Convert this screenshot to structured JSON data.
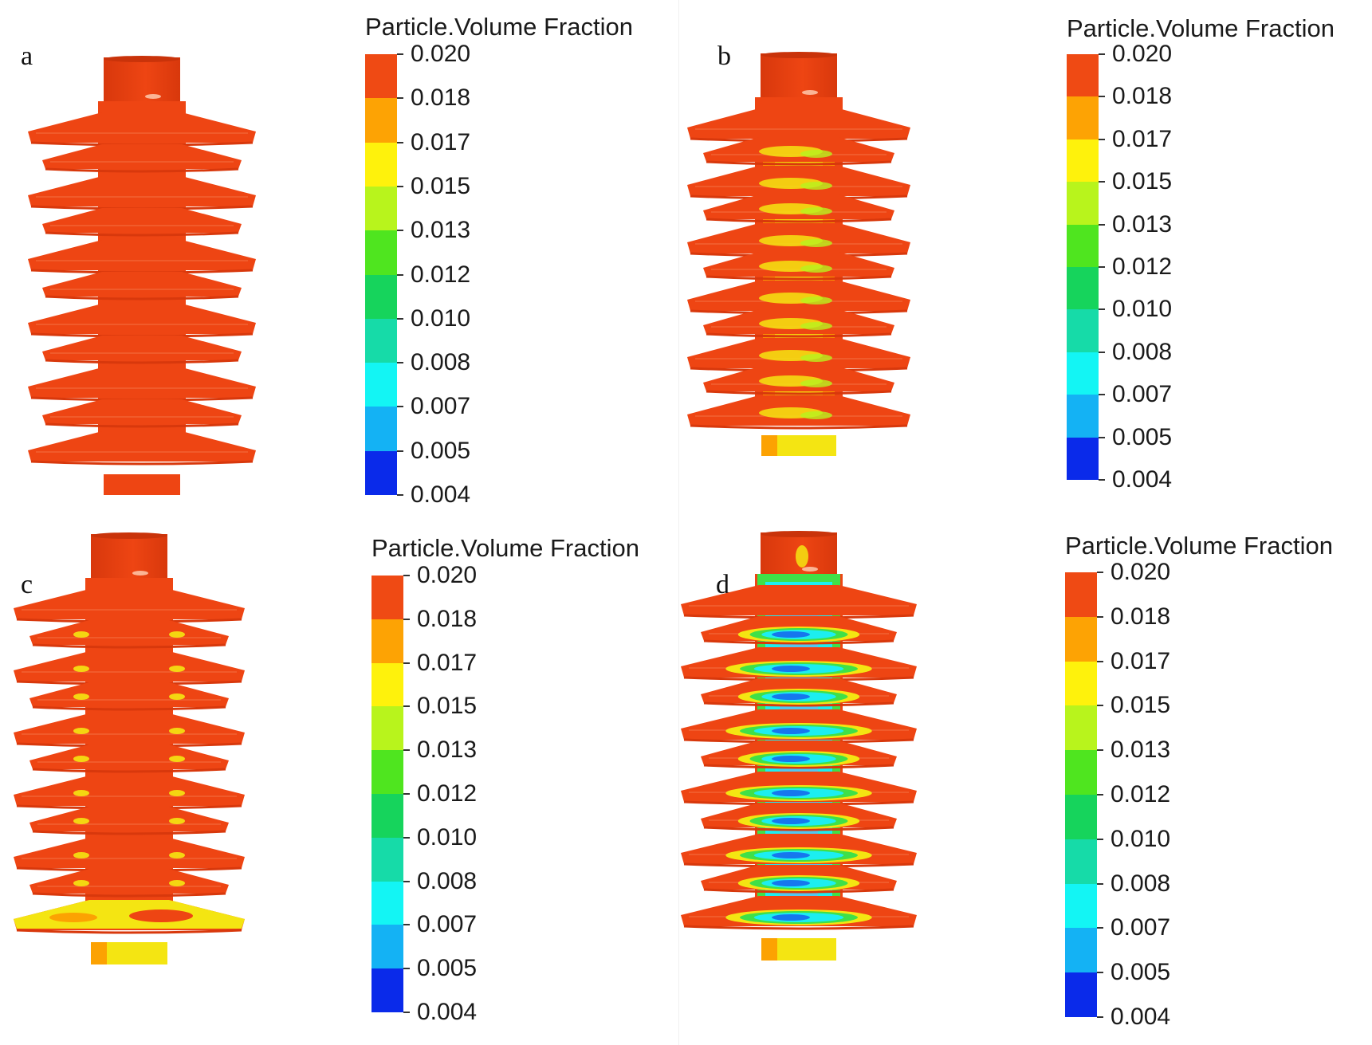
{
  "legend": {
    "title": "Particle.Volume Fraction",
    "labels": [
      "0.020",
      "0.018",
      "0.017",
      "0.015",
      "0.013",
      "0.012",
      "0.010",
      "0.008",
      "0.007",
      "0.005",
      "0.004"
    ],
    "colors": [
      "#ef4a14",
      "#fda304",
      "#fef20c",
      "#b8f41c",
      "#4fe51f",
      "#16d45c",
      "#16dba8",
      "#13f5f4",
      "#14b2f4",
      "#1162ee",
      "#0a2aea"
    ]
  },
  "panels": [
    {
      "letter": "a",
      "pattern": "uniform"
    },
    {
      "letter": "b",
      "pattern": "light"
    },
    {
      "letter": "c",
      "pattern": "base"
    },
    {
      "letter": "d",
      "pattern": "heavy"
    }
  ],
  "colors": {
    "red": "#ee4513",
    "red_dark": "#d8380c",
    "orange": "#fca202",
    "yellow": "#f4e512",
    "lime": "#b8f21e",
    "green": "#3fe048",
    "cyan": "#1ceef0",
    "blue": "#1677ee"
  }
}
